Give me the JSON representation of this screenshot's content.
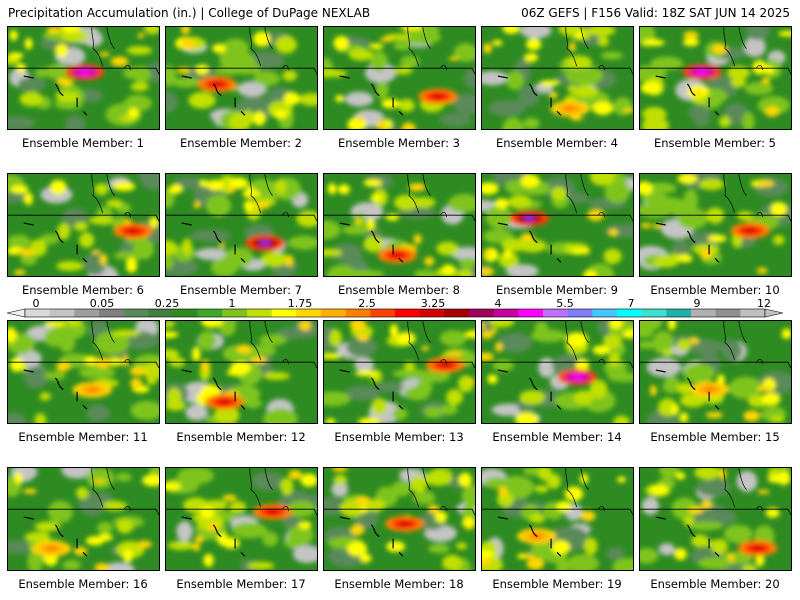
{
  "header": {
    "left": "Precipitation Accumulation (in.) | College of DuPage NEXLAB",
    "right": "06Z GEFS | F156 Valid: 18Z SAT JUN 14 2025"
  },
  "colors": {
    "grid_base": "#2e8b22",
    "scale": [
      "#d9d9d9",
      "#c4c4c4",
      "#9e9e9e",
      "#808080",
      "#5a8a5a",
      "#3f7f3f",
      "#2e8b22",
      "#3fa828",
      "#7fc41e",
      "#bfe000",
      "#ffff00",
      "#ffd700",
      "#ffb000",
      "#ff8000",
      "#ff4000",
      "#ff0000",
      "#d40000",
      "#a80000",
      "#a0005a",
      "#c800a0",
      "#ff00ff",
      "#c070ff",
      "#7f7fff",
      "#40c8ff",
      "#00ffff",
      "#40e0d0",
      "#20b2aa",
      "#b0b0b0",
      "#909090",
      "#c0c0c0"
    ]
  },
  "colorbar": {
    "labels": [
      "0",
      "0.05",
      "0.25",
      "1",
      "1.75",
      "2.5",
      "3.25",
      "4",
      "5.5",
      "7",
      "9",
      "12"
    ]
  },
  "caption_prefix": "Ensemble Member:",
  "members": [
    {
      "number": "1",
      "heavy": "magenta"
    },
    {
      "number": "2",
      "heavy": "red"
    },
    {
      "number": "3",
      "heavy": "red"
    },
    {
      "number": "4",
      "heavy": "none"
    },
    {
      "number": "5",
      "heavy": "magenta"
    },
    {
      "number": "6",
      "heavy": "red"
    },
    {
      "number": "7",
      "heavy": "purple"
    },
    {
      "number": "8",
      "heavy": "red"
    },
    {
      "number": "9",
      "heavy": "purple"
    },
    {
      "number": "10",
      "heavy": "red"
    },
    {
      "number": "11",
      "heavy": "none"
    },
    {
      "number": "12",
      "heavy": "red"
    },
    {
      "number": "13",
      "heavy": "red"
    },
    {
      "number": "14",
      "heavy": "magenta"
    },
    {
      "number": "15",
      "heavy": "none"
    },
    {
      "number": "16",
      "heavy": "none"
    },
    {
      "number": "17",
      "heavy": "red"
    },
    {
      "number": "18",
      "heavy": "red"
    },
    {
      "number": "19",
      "heavy": "none"
    },
    {
      "number": "20",
      "heavy": "red"
    }
  ]
}
